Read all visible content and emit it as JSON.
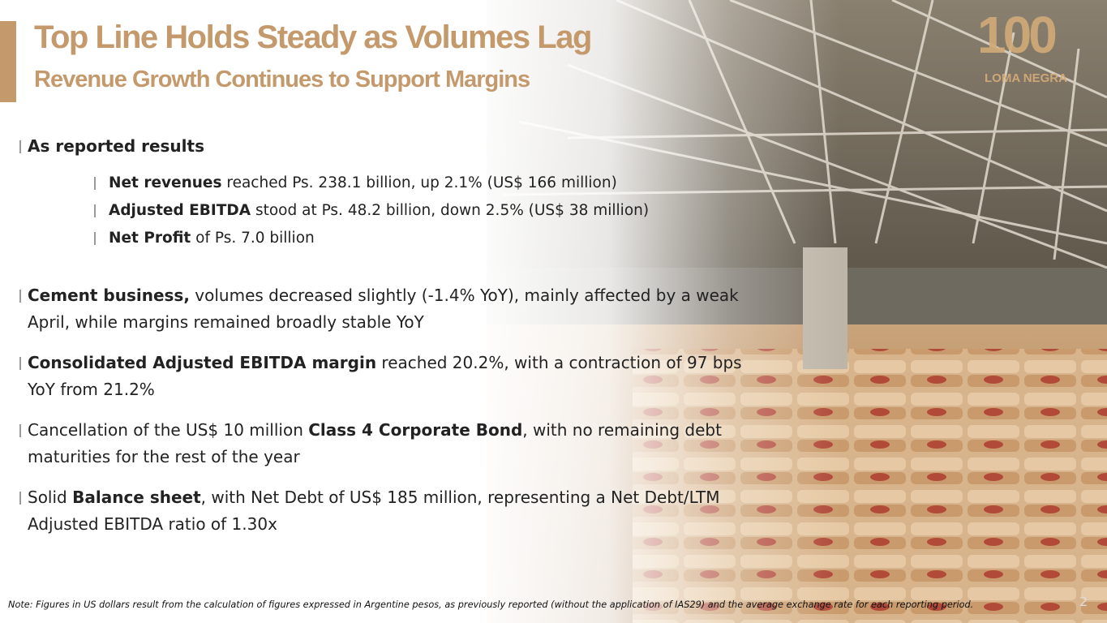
{
  "header": {
    "title": "Top Line Holds Steady as Volumes Lag",
    "subtitle": "Revenue Growth Continues to Support Margins"
  },
  "logo": {
    "number": "100",
    "brand": "LOMA NEGRA"
  },
  "bullets": [
    {
      "level": 1,
      "parts": [
        {
          "text": "As reported results",
          "bold": true
        }
      ]
    },
    {
      "level": 2,
      "parts": [
        {
          "text": "Net revenues",
          "bold": true
        },
        {
          "text": " reached Ps. 238.1 billion, up 2.1% (US$ 166 million)",
          "bold": false
        }
      ]
    },
    {
      "level": 2,
      "parts": [
        {
          "text": "Adjusted EBITDA",
          "bold": true
        },
        {
          "text": " stood at Ps. 48.2 billion, down 2.5% (US$ 38 million)",
          "bold": false
        }
      ]
    },
    {
      "level": 2,
      "parts": [
        {
          "text": "Net Profit",
          "bold": true
        },
        {
          "text": " of Ps. 7.0 billion",
          "bold": false
        }
      ]
    },
    {
      "level": 1,
      "parts": [
        {
          "text": "Cement business,",
          "bold": true
        },
        {
          "text": " volumes decreased slightly (-1.4% YoY), mainly affected by a weak April, while margins remained broadly stable YoY",
          "bold": false
        }
      ]
    },
    {
      "level": 1,
      "parts": [
        {
          "text": "Consolidated Adjusted EBITDA margin",
          "bold": true
        },
        {
          "text": " reached 20.2%, with a contraction of 97 bps YoY from 21.2%",
          "bold": false
        }
      ]
    },
    {
      "level": 1,
      "parts": [
        {
          "text": "Cancellation of the US$ 10 million ",
          "bold": false
        },
        {
          "text": "Class 4 Corporate Bond",
          "bold": true
        },
        {
          "text": ", with no remaining debt maturities for the rest of the year",
          "bold": false
        }
      ]
    },
    {
      "level": 1,
      "parts": [
        {
          "text": "Solid ",
          "bold": false
        },
        {
          "text": "Balance sheet",
          "bold": true
        },
        {
          "text": ", with Net Debt of US$ 185 million, representing a Net Debt/LTM Adjusted EBITDA ratio of 1.30x",
          "bold": false
        }
      ]
    }
  ],
  "note": "Note: Figures in US dollars result from the calculation of figures expressed in Argentine pesos, as previously reported (without the application of IAS29) and the average exchange rate for each reporting period.",
  "page_number": "2"
}
